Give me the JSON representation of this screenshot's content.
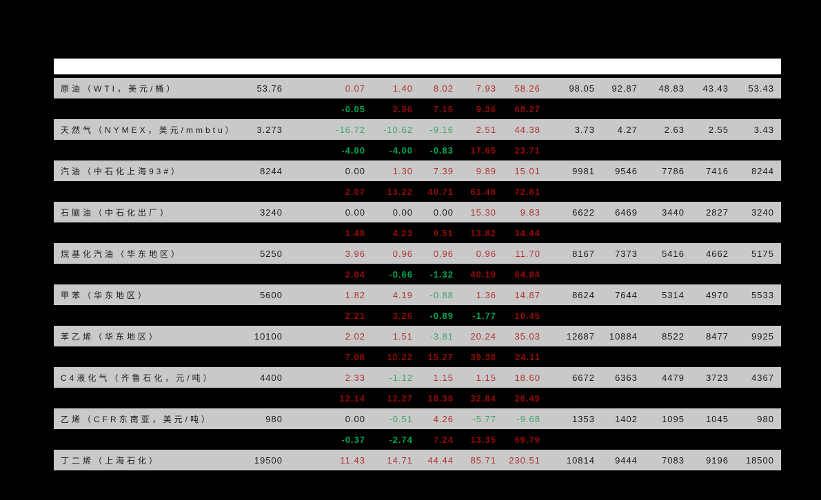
{
  "page": {
    "background": "#000000",
    "top_strip_color": "#ffffff"
  },
  "colors": {
    "row_bg": "#c9c9c9",
    "red": "#b03030",
    "green": "#3da56b",
    "black_text": "#1a1a1a",
    "sub_red": "#950a0a",
    "sub_green": "#00a651"
  },
  "chart_data": {
    "type": "table",
    "note": "commodity price table: label, spot price, 5 change columns (pct, red=up/green=down), 5 historical price columns; each product has a bold sub-row of additional pct values on black background",
    "rows": [
      {
        "label": "原油（WTI，美元/桶）",
        "spot": "53.76",
        "changes": [
          {
            "v": "0.07",
            "c": "red"
          },
          {
            "v": "1.40",
            "c": "red"
          },
          {
            "v": "8.02",
            "c": "red"
          },
          {
            "v": "7.93",
            "c": "red"
          },
          {
            "v": "58.26",
            "c": "red"
          }
        ],
        "history": [
          "98.05",
          "92.87",
          "48.83",
          "43.43",
          "53.43"
        ],
        "sub": [
          {
            "v": "-0.05",
            "c": "green"
          },
          {
            "v": "2.96",
            "c": "red"
          },
          {
            "v": "7.15",
            "c": "red"
          },
          {
            "v": "9.36",
            "c": "red"
          },
          {
            "v": "68.27",
            "c": "red"
          }
        ]
      },
      {
        "label": "天然气（NYMEX，美元/mmbtu）",
        "spot": "3.273",
        "changes": [
          {
            "v": "-16.72",
            "c": "green"
          },
          {
            "v": "-10.62",
            "c": "green"
          },
          {
            "v": "-9.16",
            "c": "green"
          },
          {
            "v": "2.51",
            "c": "red"
          },
          {
            "v": "44.38",
            "c": "red"
          }
        ],
        "history": [
          "3.73",
          "4.27",
          "2.63",
          "2.55",
          "3.43"
        ],
        "sub": [
          {
            "v": "-4.00",
            "c": "green"
          },
          {
            "v": "-4.00",
            "c": "green"
          },
          {
            "v": "-0.83",
            "c": "green"
          },
          {
            "v": "17.65",
            "c": "red"
          },
          {
            "v": "23.71",
            "c": "red"
          }
        ]
      },
      {
        "label": "汽油（中石化上海93#）",
        "spot": "8244",
        "changes": [
          {
            "v": "0.00",
            "c": "black"
          },
          {
            "v": "1.30",
            "c": "red"
          },
          {
            "v": "7.39",
            "c": "red"
          },
          {
            "v": "9.89",
            "c": "red"
          },
          {
            "v": "15.01",
            "c": "red"
          }
        ],
        "history": [
          "9981",
          "9546",
          "7786",
          "7416",
          "8244"
        ],
        "sub": [
          {
            "v": "2.07",
            "c": "red"
          },
          {
            "v": "13.22",
            "c": "red"
          },
          {
            "v": "40.71",
            "c": "red"
          },
          {
            "v": "61.48",
            "c": "red"
          },
          {
            "v": "72.81",
            "c": "red"
          }
        ]
      },
      {
        "label": "石脑油（中石化出厂）",
        "spot": "3240",
        "changes": [
          {
            "v": "0.00",
            "c": "black"
          },
          {
            "v": "0.00",
            "c": "black"
          },
          {
            "v": "0.00",
            "c": "black"
          },
          {
            "v": "15.30",
            "c": "red"
          },
          {
            "v": "9.83",
            "c": "red"
          }
        ],
        "history": [
          "6622",
          "6469",
          "3440",
          "2827",
          "3240"
        ],
        "sub": [
          {
            "v": "1.48",
            "c": "red"
          },
          {
            "v": "4.23",
            "c": "red"
          },
          {
            "v": "9.51",
            "c": "red"
          },
          {
            "v": "13.82",
            "c": "red"
          },
          {
            "v": "34.44",
            "c": "red"
          }
        ]
      },
      {
        "label": "烷基化汽油（华东地区）",
        "spot": "5250",
        "changes": [
          {
            "v": "3.96",
            "c": "red"
          },
          {
            "v": "0.96",
            "c": "red"
          },
          {
            "v": "0.96",
            "c": "red"
          },
          {
            "v": "0.96",
            "c": "red"
          },
          {
            "v": "11.70",
            "c": "red"
          }
        ],
        "history": [
          "8167",
          "7373",
          "5416",
          "4662",
          "5175"
        ],
        "sub": [
          {
            "v": "2.04",
            "c": "red"
          },
          {
            "v": "-0.66",
            "c": "green"
          },
          {
            "v": "-1.32",
            "c": "green"
          },
          {
            "v": "40.19",
            "c": "red"
          },
          {
            "v": "64.84",
            "c": "red"
          }
        ]
      },
      {
        "label": "甲苯（华东地区）",
        "spot": "5600",
        "changes": [
          {
            "v": "1.82",
            "c": "red"
          },
          {
            "v": "4.19",
            "c": "red"
          },
          {
            "v": "-0.88",
            "c": "green"
          },
          {
            "v": "1.36",
            "c": "red"
          },
          {
            "v": "14.87",
            "c": "red"
          }
        ],
        "history": [
          "8624",
          "7644",
          "5314",
          "4970",
          "5533"
        ],
        "sub": [
          {
            "v": "2.21",
            "c": "red"
          },
          {
            "v": "3.26",
            "c": "red"
          },
          {
            "v": "-0.89",
            "c": "green"
          },
          {
            "v": "-1.77",
            "c": "green"
          },
          {
            "v": "10.45",
            "c": "red"
          }
        ]
      },
      {
        "label": "苯乙烯（华东地区）",
        "spot": "10100",
        "changes": [
          {
            "v": "2.02",
            "c": "red"
          },
          {
            "v": "1.51",
            "c": "red"
          },
          {
            "v": "-3.81",
            "c": "green"
          },
          {
            "v": "20.24",
            "c": "red"
          },
          {
            "v": "35.03",
            "c": "red"
          }
        ],
        "history": [
          "12687",
          "10884",
          "8522",
          "8477",
          "9925"
        ],
        "sub": [
          {
            "v": "7.08",
            "c": "red"
          },
          {
            "v": "10.22",
            "c": "red"
          },
          {
            "v": "15.27",
            "c": "red"
          },
          {
            "v": "39.38",
            "c": "red"
          },
          {
            "v": "24.11",
            "c": "red"
          }
        ]
      },
      {
        "label": "C4液化气（齐鲁石化，元/吨）",
        "spot": "4400",
        "changes": [
          {
            "v": "2.33",
            "c": "red"
          },
          {
            "v": "-1.12",
            "c": "green"
          },
          {
            "v": "1.15",
            "c": "red"
          },
          {
            "v": "1.15",
            "c": "red"
          },
          {
            "v": "18.60",
            "c": "red"
          }
        ],
        "history": [
          "6672",
          "6363",
          "4479",
          "3723",
          "4367"
        ],
        "sub": [
          {
            "v": "12.14",
            "c": "red"
          },
          {
            "v": "12.27",
            "c": "red"
          },
          {
            "v": "18.38",
            "c": "red"
          },
          {
            "v": "32.84",
            "c": "red"
          },
          {
            "v": "26.49",
            "c": "red"
          }
        ]
      },
      {
        "label": "乙烯（CFR东南亚，美元/吨）",
        "spot": "980",
        "changes": [
          {
            "v": "0.00",
            "c": "black"
          },
          {
            "v": "-0.51",
            "c": "green"
          },
          {
            "v": "4.26",
            "c": "red"
          },
          {
            "v": "-5.77",
            "c": "green"
          },
          {
            "v": "-9.68",
            "c": "green"
          }
        ],
        "history": [
          "1353",
          "1402",
          "1095",
          "1045",
          "980"
        ],
        "sub": [
          {
            "v": "-0.37",
            "c": "green"
          },
          {
            "v": "-2.74",
            "c": "green"
          },
          {
            "v": "7.24",
            "c": "red"
          },
          {
            "v": "13.35",
            "c": "red"
          },
          {
            "v": "69.79",
            "c": "red"
          }
        ]
      },
      {
        "label": "丁二烯（上海石化）",
        "spot": "19500",
        "changes": [
          {
            "v": "11.43",
            "c": "red"
          },
          {
            "v": "14.71",
            "c": "red"
          },
          {
            "v": "44.44",
            "c": "red"
          },
          {
            "v": "85.71",
            "c": "red"
          },
          {
            "v": "230.51",
            "c": "red"
          }
        ],
        "history": [
          "10814",
          "9444",
          "7083",
          "9196",
          "18500"
        ],
        "sub": null
      }
    ]
  }
}
